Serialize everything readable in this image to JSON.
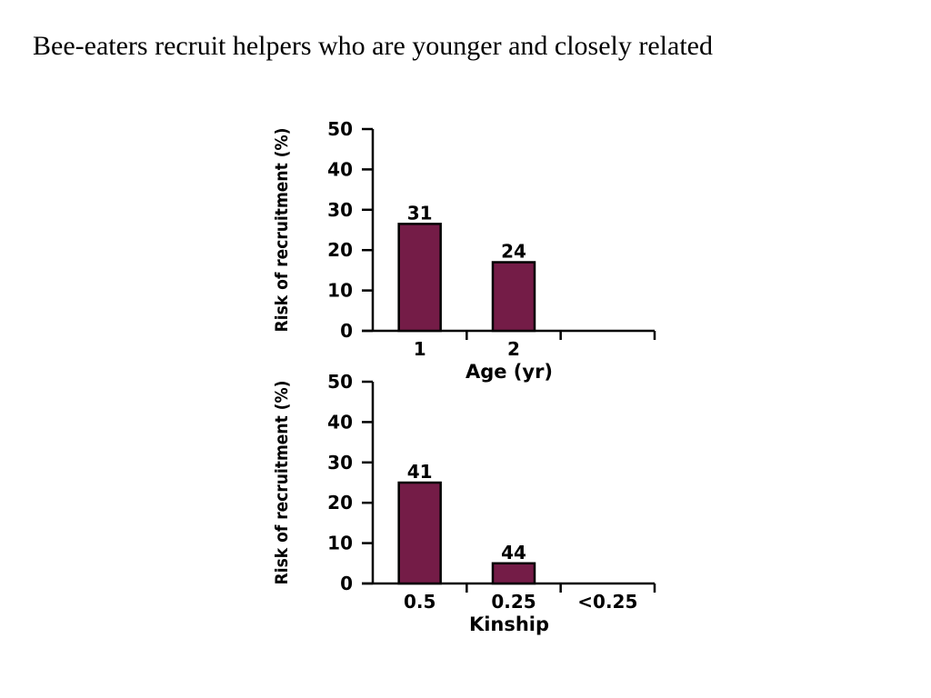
{
  "slide": {
    "title": "Bee-eaters recruit helpers who are younger and closely related"
  },
  "colors": {
    "bar_fill": "#741c47",
    "bar_stroke": "#000000",
    "axis": "#000000"
  },
  "chart_data": [
    {
      "type": "bar",
      "title": "",
      "xlabel": "Age (yr)",
      "ylabel": "Risk of recruitment (%)",
      "ylim": [
        0,
        50
      ],
      "yticks": [
        0,
        10,
        20,
        30,
        40,
        50
      ],
      "categories": [
        "1",
        "2",
        ""
      ],
      "values": [
        26.5,
        17,
        null
      ],
      "data_labels": [
        "31",
        "24",
        ""
      ],
      "grid": false,
      "legend": "none"
    },
    {
      "type": "bar",
      "title": "",
      "xlabel": "Kinship",
      "ylabel": "Risk of recruitment (%)",
      "ylim": [
        0,
        50
      ],
      "yticks": [
        0,
        10,
        20,
        30,
        40,
        50
      ],
      "categories": [
        "0.5",
        "0.25",
        "<0.25"
      ],
      "values": [
        25,
        5,
        null
      ],
      "data_labels": [
        "41",
        "44",
        ""
      ],
      "grid": false,
      "legend": "none"
    }
  ]
}
